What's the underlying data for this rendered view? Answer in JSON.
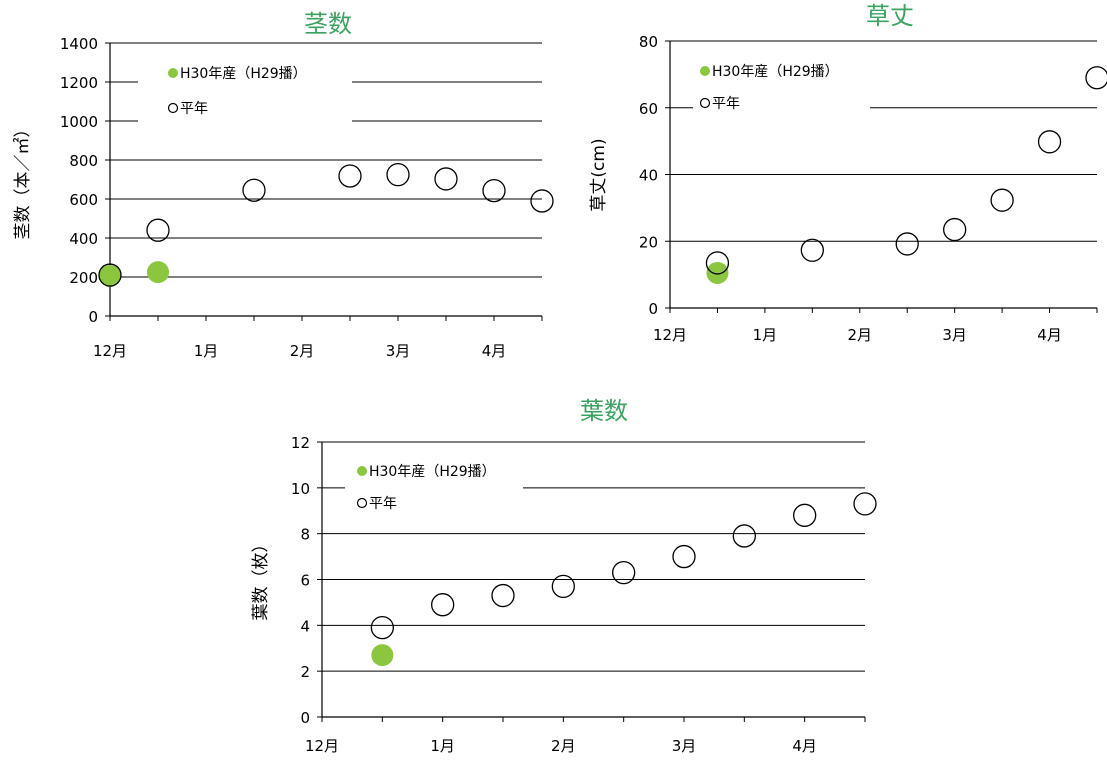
{
  "colors": {
    "title": "#3aa35f",
    "series_h30": "#8cc63f",
    "axis": "#000000"
  },
  "chart_data": [
    {
      "id": "stems",
      "type": "scatter",
      "title": "茎数",
      "xlabel": "",
      "ylabel": "茎数（本／㎡）",
      "xticks": [
        "12月",
        "1月",
        "2月",
        "3月",
        "4月"
      ],
      "ylim": [
        0,
        1400
      ],
      "yticks": [
        "0",
        "200",
        "400",
        "600",
        "800",
        "1000",
        "1200",
        "1400"
      ],
      "grid": true,
      "legend": {
        "position": "top-left",
        "entries": [
          "H30年産（H29播）",
          "平年"
        ]
      },
      "series": [
        {
          "name": "H30年産（H29播）",
          "points": [
            [
              "12/1",
              205
            ],
            [
              "12/15",
              225
            ]
          ]
        },
        {
          "name": "平年",
          "points": [
            [
              "12/1",
              210
            ],
            [
              "12/15",
              440
            ],
            [
              "1/15",
              645
            ],
            [
              "2/15",
              718
            ],
            [
              "3/1",
              725
            ],
            [
              "3/15",
              703
            ],
            [
              "4/1",
              643
            ],
            [
              "4/15",
              590
            ]
          ]
        }
      ]
    },
    {
      "id": "height",
      "type": "scatter",
      "title": "草丈",
      "xlabel": "",
      "ylabel": "草丈(cm)",
      "xticks": [
        "12月",
        "1月",
        "2月",
        "3月",
        "4月"
      ],
      "ylim": [
        0,
        80
      ],
      "yticks": [
        "0",
        "20",
        "40",
        "60",
        "80"
      ],
      "grid": true,
      "legend": {
        "position": "top-left",
        "entries": [
          "H30年産（H29播）",
          "平年"
        ]
      },
      "series": [
        {
          "name": "H30年産（H29播）",
          "points": [
            [
              "12/15",
              10.5
            ]
          ]
        },
        {
          "name": "平年",
          "points": [
            [
              "12/15",
              13.5
            ],
            [
              "1/15",
              17.3
            ],
            [
              "2/15",
              19.2
            ],
            [
              "3/1",
              23.5
            ],
            [
              "3/15",
              32.3
            ],
            [
              "4/1",
              49.8
            ],
            [
              "4/15",
              69
            ]
          ]
        }
      ]
    },
    {
      "id": "leaves",
      "type": "scatter",
      "title": "葉数",
      "xlabel": "",
      "ylabel": "葉数（枚）",
      "xticks": [
        "12月",
        "1月",
        "2月",
        "3月",
        "4月"
      ],
      "ylim": [
        0,
        12
      ],
      "yticks": [
        "0",
        "2",
        "4",
        "6",
        "8",
        "10",
        "12"
      ],
      "grid": true,
      "legend": {
        "position": "top-left",
        "entries": [
          "H30年産（H29播）",
          "平年"
        ]
      },
      "series": [
        {
          "name": "H30年産（H29播）",
          "points": [
            [
              "12/15",
              2.7
            ]
          ]
        },
        {
          "name": "平年",
          "points": [
            [
              "12/15",
              3.9
            ],
            [
              "1/1",
              4.9
            ],
            [
              "1/15",
              5.3
            ],
            [
              "2/1",
              5.7
            ],
            [
              "2/15",
              6.3
            ],
            [
              "3/1",
              7.0
            ],
            [
              "3/15",
              7.9
            ],
            [
              "4/1",
              8.8
            ],
            [
              "4/15",
              9.3
            ]
          ]
        }
      ]
    }
  ]
}
